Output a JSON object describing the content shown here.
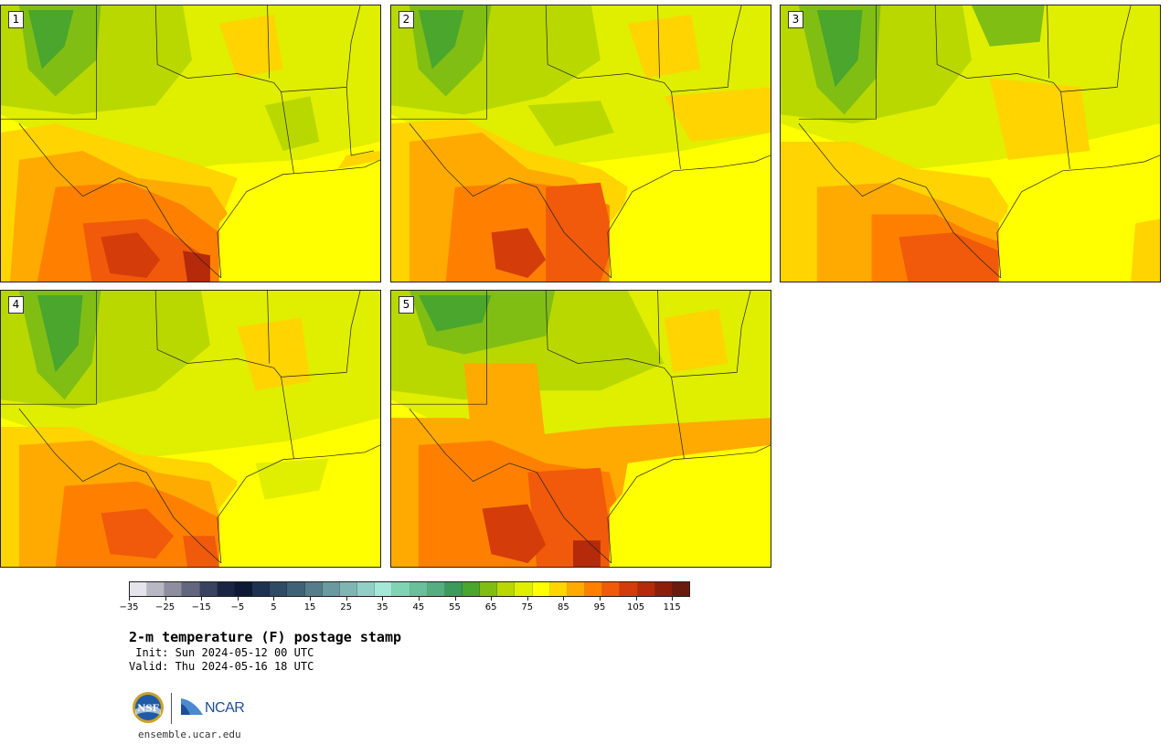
{
  "figure": {
    "title": "2-m temperature (F) postage stamp",
    "init": " Init: Sun 2024-05-12 00 UTC",
    "valid": "Valid: Thu 2024-05-16 18 UTC",
    "website": "ensemble.ucar.edu"
  },
  "panels": [
    {
      "id": "1",
      "label": "1"
    },
    {
      "id": "2",
      "label": "2"
    },
    {
      "id": "3",
      "label": "3"
    },
    {
      "id": "4",
      "label": "4"
    },
    {
      "id": "5",
      "label": "5"
    }
  ],
  "colorbar": {
    "units": "F",
    "min": -35,
    "max": 120,
    "tick_values": [
      -35,
      -25,
      -15,
      -5,
      5,
      15,
      25,
      35,
      45,
      55,
      65,
      75,
      85,
      95,
      105,
      115
    ],
    "tick_labels": [
      "−35",
      "−25",
      "−15",
      "−5",
      "5",
      "15",
      "25",
      "35",
      "45",
      "55",
      "65",
      "75",
      "85",
      "95",
      "105",
      "115"
    ],
    "colors": [
      "#e4e4ea",
      "#b8b8c4",
      "#8e8ea0",
      "#62667e",
      "#3a4262",
      "#1a2444",
      "#0c1a36",
      "#1c3250",
      "#2e4a64",
      "#3f6278",
      "#557d8a",
      "#6a9aa0",
      "#7fb6b4",
      "#92cfc6",
      "#a4e8d8",
      "#7fd4b4",
      "#6ac09a",
      "#55ad80",
      "#3c9a5a",
      "#4aa62c",
      "#80be14",
      "#b8d800",
      "#e0ee00",
      "#ffff00",
      "#ffd400",
      "#ffaa00",
      "#ff8000",
      "#f05a0a",
      "#d43c0a",
      "#b42a0a",
      "#8c1e0a",
      "#6a1a0e"
    ]
  },
  "logos": {
    "nsf": "NSF",
    "ncar": "NCAR"
  }
}
